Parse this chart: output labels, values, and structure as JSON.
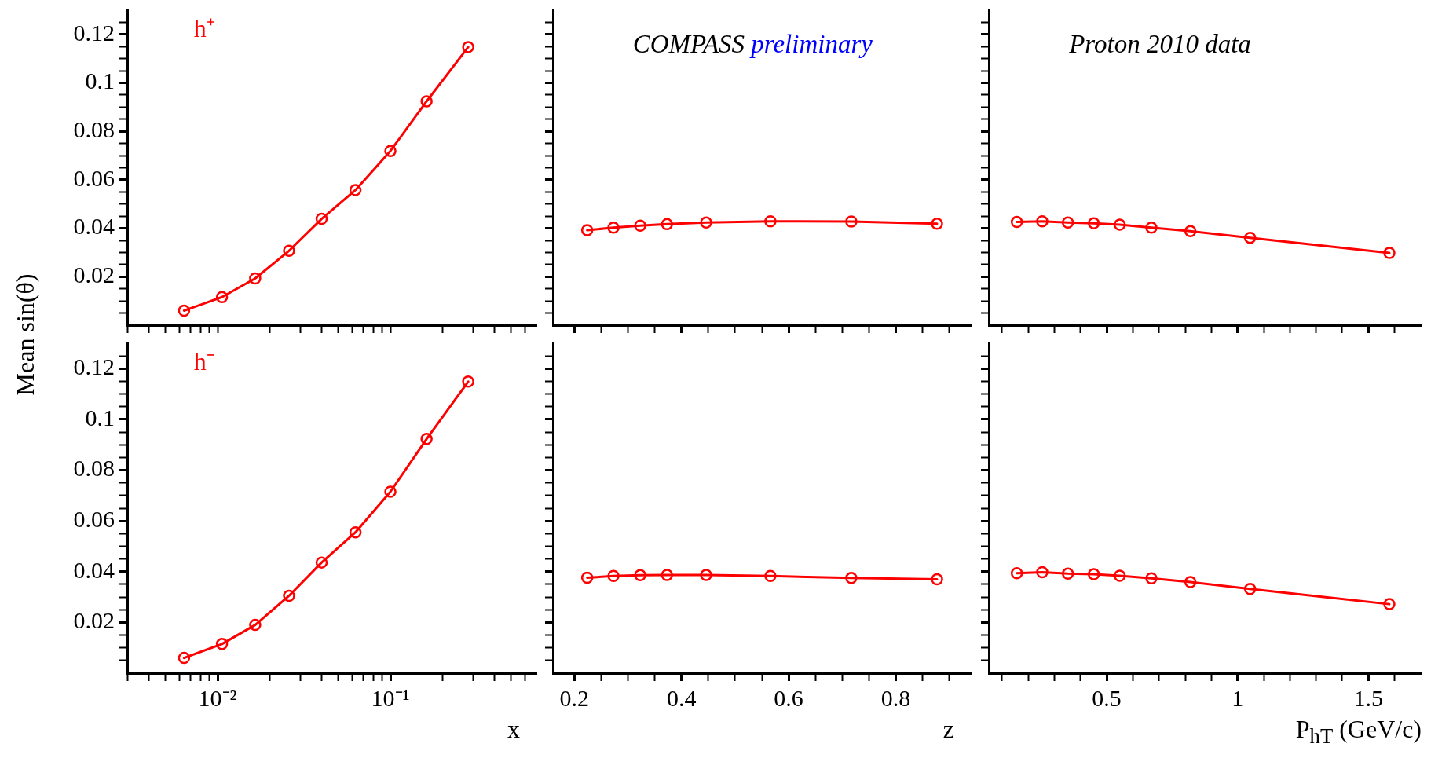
{
  "chart_data": [
    {
      "type": "line",
      "ylabel": "Mean sin(θ)",
      "annotations": [
        "h⁺"
      ],
      "log": "x",
      "marker": "circle",
      "tick_labels": "y",
      "x": [
        0.0064,
        0.0106,
        0.0165,
        0.0259,
        0.04,
        0.0628,
        0.1,
        0.162,
        0.282
      ],
      "series": [
        {
          "color": "#ff0000",
          "values": [
            0.006,
            0.0116,
            0.0193,
            0.0307,
            0.0439,
            0.0558,
            0.0719,
            0.0924,
            0.1148
          ]
        }
      ],
      "xlim": [
        0.003,
        0.7
      ],
      "xticks": [
        {
          "value": 0.003,
          "label": null
        },
        {
          "value": 0.004,
          "label": null
        },
        {
          "value": 0.005,
          "label": null
        },
        {
          "value": 0.006,
          "label": null
        },
        {
          "value": 0.007,
          "label": null
        },
        {
          "value": 0.008,
          "label": null
        },
        {
          "value": 0.009,
          "label": null
        },
        {
          "value": 0.01,
          "label": null
        },
        {
          "value": 0.02,
          "label": null
        },
        {
          "value": 0.03,
          "label": null
        },
        {
          "value": 0.04,
          "label": null
        },
        {
          "value": 0.05,
          "label": null
        },
        {
          "value": 0.06,
          "label": null
        },
        {
          "value": 0.07,
          "label": null
        },
        {
          "value": 0.08,
          "label": null
        },
        {
          "value": 0.09,
          "label": null
        },
        {
          "value": 0.1,
          "label": null
        },
        {
          "value": 0.2,
          "label": null
        },
        {
          "value": 0.3,
          "label": null
        },
        {
          "value": 0.4,
          "label": null
        },
        {
          "value": 0.5,
          "label": null
        },
        {
          "value": 0.6,
          "label": null
        }
      ],
      "ylim": [
        0,
        0.13
      ],
      "yticks": [
        {
          "value": 0.005,
          "label": null
        },
        {
          "value": 0.01,
          "label": null
        },
        {
          "value": 0.015,
          "label": null
        },
        0.02,
        {
          "value": 0.025,
          "label": null
        },
        {
          "value": 0.03,
          "label": null
        },
        {
          "value": 0.035,
          "label": null
        },
        0.04,
        {
          "value": 0.045,
          "label": null
        },
        {
          "value": 0.05,
          "label": null
        },
        {
          "value": 0.055,
          "label": null
        },
        0.06,
        {
          "value": 0.065,
          "label": null
        },
        {
          "value": 0.07,
          "label": null
        },
        {
          "value": 0.075,
          "label": null
        },
        0.08,
        {
          "value": 0.085,
          "label": null
        },
        {
          "value": 0.09,
          "label": null
        },
        {
          "value": 0.095,
          "label": null
        },
        0.1,
        {
          "value": 0.105,
          "label": null
        },
        {
          "value": 0.11,
          "label": null
        },
        {
          "value": 0.115,
          "label": null
        },
        0.12,
        {
          "value": 0.125,
          "label": null
        }
      ]
    },
    {
      "type": "line",
      "annotations": [
        "COMPASS",
        "preliminary"
      ],
      "marker": "circle",
      "tick_labels": false,
      "x": [
        0.224,
        0.273,
        0.323,
        0.373,
        0.446,
        0.566,
        0.717,
        0.877
      ],
      "series": [
        {
          "color": "#ff0000",
          "values": [
            0.0392,
            0.0403,
            0.0411,
            0.0417,
            0.0424,
            0.0429,
            0.0428,
            0.0419
          ]
        }
      ],
      "xlim": [
        0.16,
        0.94
      ],
      "xticks": [
        0.2,
        {
          "value": 0.25,
          "label": null
        },
        {
          "value": 0.3,
          "label": null
        },
        {
          "value": 0.35,
          "label": null
        },
        0.4,
        {
          "value": 0.45,
          "label": null
        },
        {
          "value": 0.5,
          "label": null
        },
        {
          "value": 0.55,
          "label": null
        },
        0.6,
        {
          "value": 0.65,
          "label": null
        },
        {
          "value": 0.7,
          "label": null
        },
        {
          "value": 0.75,
          "label": null
        },
        0.8,
        {
          "value": 0.85,
          "label": null
        },
        {
          "value": 0.9,
          "label": null
        }
      ],
      "ylim": [
        0,
        0.13
      ],
      "yticks": [
        {
          "value": 0.005,
          "label": null
        },
        {
          "value": 0.01,
          "label": null
        },
        {
          "value": 0.015,
          "label": null
        },
        0.02,
        {
          "value": 0.025,
          "label": null
        },
        {
          "value": 0.03,
          "label": null
        },
        {
          "value": 0.035,
          "label": null
        },
        0.04,
        {
          "value": 0.045,
          "label": null
        },
        {
          "value": 0.05,
          "label": null
        },
        {
          "value": 0.055,
          "label": null
        },
        0.06,
        {
          "value": 0.065,
          "label": null
        },
        {
          "value": 0.07,
          "label": null
        },
        {
          "value": 0.075,
          "label": null
        },
        0.08,
        {
          "value": 0.085,
          "label": null
        },
        {
          "value": 0.09,
          "label": null
        },
        {
          "value": 0.095,
          "label": null
        },
        0.1,
        {
          "value": 0.105,
          "label": null
        },
        {
          "value": 0.11,
          "label": null
        },
        {
          "value": 0.115,
          "label": null
        },
        0.12,
        {
          "value": 0.125,
          "label": null
        }
      ]
    },
    {
      "type": "line",
      "annotations": [
        "Proton 2010 data"
      ],
      "marker": "circle",
      "tick_labels": false,
      "x": [
        0.157,
        0.254,
        0.352,
        0.451,
        0.55,
        0.671,
        0.82,
        1.048,
        1.58
      ],
      "series": [
        {
          "color": "#ff0000",
          "values": [
            0.0426,
            0.0429,
            0.0424,
            0.0421,
            0.0415,
            0.0403,
            0.0388,
            0.0361,
            0.0298
          ]
        }
      ],
      "xlim": [
        0.05,
        1.7
      ],
      "xticks": [
        {
          "value": 0.1,
          "label": null
        },
        {
          "value": 0.2,
          "label": null
        },
        {
          "value": 0.3,
          "label": null
        },
        {
          "value": 0.4,
          "label": null
        },
        0.5,
        {
          "value": 0.6,
          "label": null
        },
        {
          "value": 0.7,
          "label": null
        },
        {
          "value": 0.8,
          "label": null
        },
        {
          "value": 0.9,
          "label": null
        },
        1,
        {
          "value": 1.1,
          "label": null
        },
        {
          "value": 1.2,
          "label": null
        },
        {
          "value": 1.3,
          "label": null
        },
        {
          "value": 1.4,
          "label": null
        },
        1.5,
        {
          "value": 1.6,
          "label": null
        }
      ],
      "ylim": [
        0,
        0.13
      ],
      "yticks": [
        {
          "value": 0.005,
          "label": null
        },
        {
          "value": 0.01,
          "label": null
        },
        {
          "value": 0.015,
          "label": null
        },
        0.02,
        {
          "value": 0.025,
          "label": null
        },
        {
          "value": 0.03,
          "label": null
        },
        {
          "value": 0.035,
          "label": null
        },
        0.04,
        {
          "value": 0.045,
          "label": null
        },
        {
          "value": 0.05,
          "label": null
        },
        {
          "value": 0.055,
          "label": null
        },
        0.06,
        {
          "value": 0.065,
          "label": null
        },
        {
          "value": 0.07,
          "label": null
        },
        {
          "value": 0.075,
          "label": null
        },
        0.08,
        {
          "value": 0.085,
          "label": null
        },
        {
          "value": 0.09,
          "label": null
        },
        {
          "value": 0.095,
          "label": null
        },
        0.1,
        {
          "value": 0.105,
          "label": null
        },
        {
          "value": 0.11,
          "label": null
        },
        {
          "value": 0.115,
          "label": null
        },
        0.12,
        {
          "value": 0.125,
          "label": null
        }
      ]
    },
    {
      "type": "line",
      "xlabel": "x",
      "annotations": [
        "h⁻"
      ],
      "log": "x",
      "marker": "circle",
      "x": [
        0.0064,
        0.0106,
        0.0165,
        0.0259,
        0.04,
        0.0628,
        0.1,
        0.162,
        0.282
      ],
      "series": [
        {
          "color": "#ff0000",
          "values": [
            0.006,
            0.0115,
            0.019,
            0.0305,
            0.0436,
            0.0555,
            0.0715,
            0.0923,
            0.1149
          ]
        }
      ],
      "xlim": [
        0.003,
        0.7
      ],
      "xticks": [
        {
          "value": 0.003,
          "label": null
        },
        {
          "value": 0.004,
          "label": null
        },
        {
          "value": 0.005,
          "label": null
        },
        {
          "value": 0.006,
          "label": null
        },
        {
          "value": 0.007,
          "label": null
        },
        {
          "value": 0.008,
          "label": null
        },
        {
          "value": 0.009,
          "label": null
        },
        {
          "value": 0.01,
          "label": "10⁻²"
        },
        {
          "value": 0.02,
          "label": null
        },
        {
          "value": 0.03,
          "label": null
        },
        {
          "value": 0.04,
          "label": null
        },
        {
          "value": 0.05,
          "label": null
        },
        {
          "value": 0.06,
          "label": null
        },
        {
          "value": 0.07,
          "label": null
        },
        {
          "value": 0.08,
          "label": null
        },
        {
          "value": 0.09,
          "label": null
        },
        {
          "value": 0.1,
          "label": "10⁻¹"
        },
        {
          "value": 0.2,
          "label": null
        },
        {
          "value": 0.3,
          "label": null
        },
        {
          "value": 0.4,
          "label": null
        },
        {
          "value": 0.5,
          "label": null
        },
        {
          "value": 0.6,
          "label": null
        }
      ],
      "ylim": [
        0,
        0.13
      ],
      "yticks": [
        {
          "value": 0.005,
          "label": null
        },
        {
          "value": 0.01,
          "label": null
        },
        {
          "value": 0.015,
          "label": null
        },
        0.02,
        {
          "value": 0.025,
          "label": null
        },
        {
          "value": 0.03,
          "label": null
        },
        {
          "value": 0.035,
          "label": null
        },
        0.04,
        {
          "value": 0.045,
          "label": null
        },
        {
          "value": 0.05,
          "label": null
        },
        {
          "value": 0.055,
          "label": null
        },
        0.06,
        {
          "value": 0.065,
          "label": null
        },
        {
          "value": 0.07,
          "label": null
        },
        {
          "value": 0.075,
          "label": null
        },
        0.08,
        {
          "value": 0.085,
          "label": null
        },
        {
          "value": 0.09,
          "label": null
        },
        {
          "value": 0.095,
          "label": null
        },
        0.1,
        {
          "value": 0.105,
          "label": null
        },
        {
          "value": 0.11,
          "label": null
        },
        {
          "value": 0.115,
          "label": null
        },
        0.12,
        {
          "value": 0.125,
          "label": null
        }
      ]
    },
    {
      "type": "line",
      "xlabel": "z",
      "marker": "circle",
      "tick_labels": "x",
      "x": [
        0.224,
        0.273,
        0.323,
        0.373,
        0.446,
        0.566,
        0.717,
        0.877
      ],
      "series": [
        {
          "color": "#ff0000",
          "values": [
            0.0376,
            0.0383,
            0.0386,
            0.0387,
            0.0387,
            0.0383,
            0.0375,
            0.037
          ]
        }
      ],
      "xlim": [
        0.16,
        0.94
      ],
      "xticks": [
        0.2,
        {
          "value": 0.25,
          "label": null
        },
        {
          "value": 0.3,
          "label": null
        },
        {
          "value": 0.35,
          "label": null
        },
        0.4,
        {
          "value": 0.45,
          "label": null
        },
        {
          "value": 0.5,
          "label": null
        },
        {
          "value": 0.55,
          "label": null
        },
        0.6,
        {
          "value": 0.65,
          "label": null
        },
        {
          "value": 0.7,
          "label": null
        },
        {
          "value": 0.75,
          "label": null
        },
        0.8,
        {
          "value": 0.85,
          "label": null
        },
        {
          "value": 0.9,
          "label": null
        }
      ],
      "ylim": [
        0,
        0.13
      ],
      "yticks": [
        {
          "value": 0.005,
          "label": null
        },
        {
          "value": 0.01,
          "label": null
        },
        {
          "value": 0.015,
          "label": null
        },
        0.02,
        {
          "value": 0.025,
          "label": null
        },
        {
          "value": 0.03,
          "label": null
        },
        {
          "value": 0.035,
          "label": null
        },
        0.04,
        {
          "value": 0.045,
          "label": null
        },
        {
          "value": 0.05,
          "label": null
        },
        {
          "value": 0.055,
          "label": null
        },
        0.06,
        {
          "value": 0.065,
          "label": null
        },
        {
          "value": 0.07,
          "label": null
        },
        {
          "value": 0.075,
          "label": null
        },
        0.08,
        {
          "value": 0.085,
          "label": null
        },
        {
          "value": 0.09,
          "label": null
        },
        {
          "value": 0.095,
          "label": null
        },
        0.1,
        {
          "value": 0.105,
          "label": null
        },
        {
          "value": 0.11,
          "label": null
        },
        {
          "value": 0.115,
          "label": null
        },
        0.12,
        {
          "value": 0.125,
          "label": null
        }
      ]
    },
    {
      "type": "line",
      "xlabel": "P$_{hT}$ (GeV/c)",
      "marker": "circle",
      "tick_labels": "x",
      "x": [
        0.157,
        0.254,
        0.352,
        0.451,
        0.55,
        0.671,
        0.82,
        1.048,
        1.58
      ],
      "series": [
        {
          "color": "#ff0000",
          "values": [
            0.0394,
            0.0398,
            0.0392,
            0.039,
            0.0384,
            0.0374,
            0.0359,
            0.0332,
            0.0272
          ]
        }
      ],
      "xlim": [
        0.05,
        1.7
      ],
      "xticks": [
        {
          "value": 0.1,
          "label": null
        },
        {
          "value": 0.2,
          "label": null
        },
        {
          "value": 0.3,
          "label": null
        },
        {
          "value": 0.4,
          "label": null
        },
        0.5,
        {
          "value": 0.6,
          "label": null
        },
        {
          "value": 0.7,
          "label": null
        },
        {
          "value": 0.8,
          "label": null
        },
        {
          "value": 0.9,
          "label": null
        },
        1,
        {
          "value": 1.1,
          "label": null
        },
        {
          "value": 1.2,
          "label": null
        },
        {
          "value": 1.3,
          "label": null
        },
        {
          "value": 1.4,
          "label": null
        },
        1.5,
        {
          "value": 1.6,
          "label": null
        }
      ],
      "ylim": [
        0,
        0.13
      ],
      "yticks": [
        {
          "value": 0.005,
          "label": null
        },
        {
          "value": 0.01,
          "label": null
        },
        {
          "value": 0.015,
          "label": null
        },
        0.02,
        {
          "value": 0.025,
          "label": null
        },
        {
          "value": 0.03,
          "label": null
        },
        {
          "value": 0.035,
          "label": null
        },
        0.04,
        {
          "value": 0.045,
          "label": null
        },
        {
          "value": 0.05,
          "label": null
        },
        {
          "value": 0.055,
          "label": null
        },
        0.06,
        {
          "value": 0.065,
          "label": null
        },
        {
          "value": 0.07,
          "label": null
        },
        {
          "value": 0.075,
          "label": null
        },
        0.08,
        {
          "value": 0.085,
          "label": null
        },
        {
          "value": 0.09,
          "label": null
        },
        {
          "value": 0.095,
          "label": null
        },
        0.1,
        {
          "value": 0.105,
          "label": null
        },
        {
          "value": 0.11,
          "label": null
        },
        {
          "value": 0.115,
          "label": null
        },
        0.12,
        {
          "value": 0.125,
          "label": null
        }
      ]
    }
  ]
}
